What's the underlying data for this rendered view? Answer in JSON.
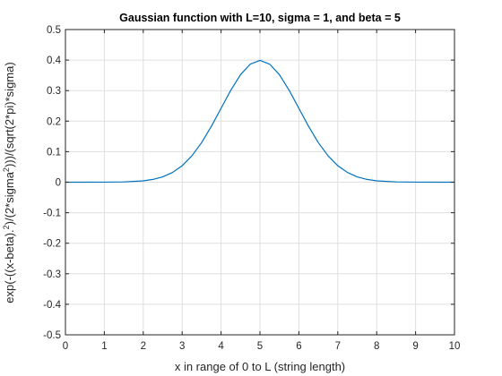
{
  "chart_data": {
    "type": "line",
    "title": "Gaussian function with L=10, sigma = 1, and beta = 5",
    "xlabel": "x in range of 0 to L (string length)",
    "ylabel_parts": {
      "a": "exp(-((x-beta).",
      "a_sup": "2",
      "b": ")/(2*sigma",
      "b_sup": "2",
      "c": ")))/(sqrt(2*pi)*sigma)"
    },
    "xlim": [
      0,
      10
    ],
    "ylim": [
      -0.5,
      0.5
    ],
    "xticks": [
      0,
      1,
      2,
      3,
      4,
      5,
      6,
      7,
      8,
      9,
      10
    ],
    "yticks": [
      -0.5,
      -0.4,
      -0.3,
      -0.2,
      -0.1,
      0,
      0.1,
      0.2,
      0.3,
      0.4,
      0.5
    ],
    "grid": true,
    "line_color": "#0072BD",
    "series": [
      {
        "x": [
          0,
          0.5,
          1,
          1.5,
          2,
          2.25,
          2.5,
          2.75,
          3,
          3.25,
          3.5,
          3.75,
          4,
          4.25,
          4.5,
          4.75,
          5,
          5.25,
          5.5,
          5.75,
          6,
          6.25,
          6.5,
          6.75,
          7,
          7.25,
          7.5,
          7.75,
          8,
          8.5,
          9,
          9.5,
          10
        ],
        "y": [
          1.5e-06,
          1.6e-05,
          0.000134,
          0.000873,
          0.004432,
          0.009094,
          0.017528,
          0.03174,
          0.053991,
          0.086277,
          0.129518,
          0.182649,
          0.241971,
          0.301137,
          0.352065,
          0.386668,
          0.398942,
          0.386668,
          0.352065,
          0.301137,
          0.241971,
          0.182649,
          0.129518,
          0.086277,
          0.053991,
          0.03174,
          0.017528,
          0.009094,
          0.004432,
          0.000873,
          0.000134,
          1.6e-05,
          1.5e-06
        ]
      }
    ]
  }
}
